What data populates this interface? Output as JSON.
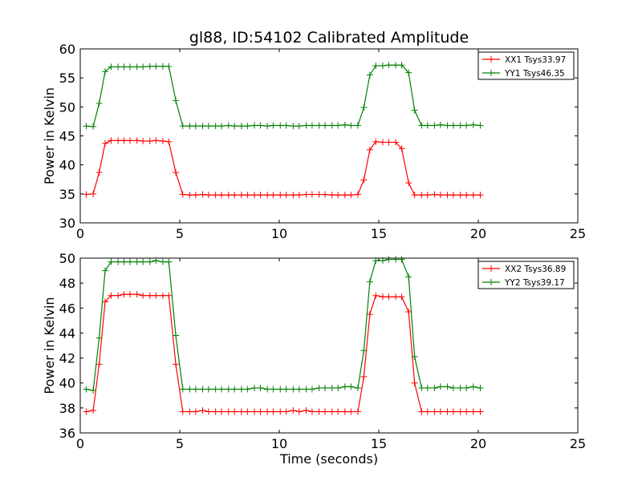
{
  "chart_data": [
    {
      "type": "line",
      "title": "gl88, ID:54102 Calibrated Amplitude",
      "xlabel": "",
      "ylabel": "Power in Kelvin",
      "xlim": [
        0,
        25
      ],
      "ylim": [
        30,
        60
      ],
      "xticks": [
        0,
        5,
        10,
        15,
        20,
        25
      ],
      "yticks": [
        30,
        35,
        40,
        45,
        50,
        55,
        60
      ],
      "grid": false,
      "legend_position": "top-right",
      "series": [
        {
          "name": "XX1 Tsys33.97",
          "color": "#ff0000",
          "x": [
            0.3,
            0.65,
            0.95,
            1.25,
            1.55,
            1.9,
            2.2,
            2.5,
            2.85,
            3.15,
            3.5,
            3.8,
            4.15,
            4.45,
            4.8,
            5.15,
            5.5,
            5.8,
            6.15,
            6.45,
            6.8,
            7.1,
            7.45,
            7.75,
            8.1,
            8.4,
            8.75,
            9.05,
            9.4,
            9.7,
            10.05,
            10.35,
            10.7,
            11.0,
            11.35,
            11.65,
            12.0,
            12.3,
            12.65,
            12.95,
            13.3,
            13.6,
            13.95,
            14.25,
            14.55,
            14.85,
            15.2,
            15.5,
            15.85,
            16.15,
            16.5,
            16.8,
            17.15,
            17.45,
            17.8,
            18.1,
            18.45,
            18.75,
            19.1,
            19.4,
            19.75,
            20.1
          ],
          "y": [
            34.9,
            35.0,
            38.7,
            43.7,
            44.2,
            44.2,
            44.2,
            44.2,
            44.2,
            44.1,
            44.1,
            44.2,
            44.1,
            44.0,
            38.7,
            34.9,
            34.8,
            34.8,
            34.9,
            34.8,
            34.8,
            34.8,
            34.8,
            34.8,
            34.8,
            34.8,
            34.8,
            34.8,
            34.8,
            34.8,
            34.8,
            34.8,
            34.8,
            34.8,
            34.9,
            34.9,
            34.9,
            34.9,
            34.8,
            34.8,
            34.8,
            34.8,
            34.9,
            37.4,
            42.6,
            44.0,
            43.9,
            43.9,
            43.9,
            42.8,
            36.9,
            34.8,
            34.8,
            34.8,
            34.9,
            34.8,
            34.8,
            34.8,
            34.8,
            34.8,
            34.8,
            34.8
          ]
        },
        {
          "name": "YY1 Tsys46.35",
          "color": "#008000",
          "x": [
            0.3,
            0.65,
            0.95,
            1.25,
            1.55,
            1.9,
            2.2,
            2.5,
            2.85,
            3.15,
            3.5,
            3.8,
            4.15,
            4.45,
            4.8,
            5.15,
            5.5,
            5.8,
            6.15,
            6.45,
            6.8,
            7.1,
            7.45,
            7.75,
            8.1,
            8.4,
            8.75,
            9.05,
            9.4,
            9.7,
            10.05,
            10.35,
            10.7,
            11.0,
            11.35,
            11.65,
            12.0,
            12.3,
            12.65,
            12.95,
            13.3,
            13.6,
            13.95,
            14.25,
            14.55,
            14.85,
            15.2,
            15.5,
            15.85,
            16.15,
            16.5,
            16.8,
            17.15,
            17.45,
            17.8,
            18.1,
            18.45,
            18.75,
            19.1,
            19.4,
            19.75,
            20.1
          ],
          "y": [
            46.7,
            46.6,
            50.6,
            56.1,
            56.9,
            56.9,
            56.9,
            56.9,
            56.9,
            56.9,
            57.0,
            57.0,
            57.0,
            57.0,
            51.1,
            46.7,
            46.7,
            46.7,
            46.7,
            46.7,
            46.7,
            46.7,
            46.8,
            46.7,
            46.7,
            46.7,
            46.8,
            46.8,
            46.7,
            46.8,
            46.8,
            46.8,
            46.7,
            46.7,
            46.8,
            46.8,
            46.8,
            46.8,
            46.8,
            46.8,
            46.9,
            46.8,
            46.8,
            49.9,
            55.5,
            57.1,
            57.1,
            57.2,
            57.2,
            57.2,
            55.9,
            49.4,
            46.8,
            46.8,
            46.8,
            46.9,
            46.8,
            46.8,
            46.8,
            46.8,
            46.9,
            46.8
          ]
        }
      ]
    },
    {
      "type": "line",
      "title": "",
      "xlabel": "Time (seconds)",
      "ylabel": "Power in Kelvin",
      "xlim": [
        0,
        25
      ],
      "ylim": [
        36,
        50
      ],
      "xticks": [
        0,
        5,
        10,
        15,
        20,
        25
      ],
      "yticks": [
        36,
        38,
        40,
        42,
        44,
        46,
        48,
        50
      ],
      "grid": false,
      "legend_position": "top-right",
      "series": [
        {
          "name": "XX2 Tsys36.89",
          "color": "#ff0000",
          "x": [
            0.3,
            0.65,
            0.95,
            1.25,
            1.55,
            1.9,
            2.2,
            2.5,
            2.85,
            3.15,
            3.5,
            3.8,
            4.15,
            4.45,
            4.8,
            5.15,
            5.5,
            5.8,
            6.15,
            6.45,
            6.8,
            7.1,
            7.45,
            7.75,
            8.1,
            8.4,
            8.75,
            9.05,
            9.4,
            9.7,
            10.05,
            10.35,
            10.7,
            11.0,
            11.35,
            11.65,
            12.0,
            12.3,
            12.65,
            12.95,
            13.3,
            13.6,
            13.95,
            14.25,
            14.55,
            14.85,
            15.2,
            15.5,
            15.85,
            16.15,
            16.5,
            16.8,
            17.15,
            17.45,
            17.8,
            18.1,
            18.45,
            18.75,
            19.1,
            19.4,
            19.75,
            20.1
          ],
          "y": [
            37.7,
            37.8,
            41.5,
            46.5,
            47.0,
            47.0,
            47.1,
            47.1,
            47.1,
            47.0,
            47.0,
            47.0,
            47.0,
            47.0,
            41.5,
            37.7,
            37.7,
            37.7,
            37.8,
            37.7,
            37.7,
            37.7,
            37.7,
            37.7,
            37.7,
            37.7,
            37.7,
            37.7,
            37.7,
            37.7,
            37.7,
            37.7,
            37.8,
            37.7,
            37.8,
            37.7,
            37.7,
            37.7,
            37.7,
            37.7,
            37.7,
            37.7,
            37.7,
            40.5,
            45.5,
            47.0,
            46.9,
            46.9,
            46.9,
            46.9,
            45.7,
            40.0,
            37.7,
            37.7,
            37.7,
            37.7,
            37.7,
            37.7,
            37.7,
            37.7,
            37.7,
            37.7
          ]
        },
        {
          "name": "YY2 Tsys39.17",
          "color": "#008000",
          "x": [
            0.3,
            0.65,
            0.95,
            1.25,
            1.55,
            1.9,
            2.2,
            2.5,
            2.85,
            3.15,
            3.5,
            3.8,
            4.15,
            4.45,
            4.8,
            5.15,
            5.5,
            5.8,
            6.15,
            6.45,
            6.8,
            7.1,
            7.45,
            7.75,
            8.1,
            8.4,
            8.75,
            9.05,
            9.4,
            9.7,
            10.05,
            10.35,
            10.7,
            11.0,
            11.35,
            11.65,
            12.0,
            12.3,
            12.65,
            12.95,
            13.3,
            13.6,
            13.95,
            14.25,
            14.55,
            14.85,
            15.2,
            15.5,
            15.85,
            16.15,
            16.5,
            16.8,
            17.15,
            17.45,
            17.8,
            18.1,
            18.45,
            18.75,
            19.1,
            19.4,
            19.75,
            20.1
          ],
          "y": [
            39.5,
            39.4,
            43.6,
            49.0,
            49.7,
            49.7,
            49.7,
            49.7,
            49.7,
            49.7,
            49.7,
            49.8,
            49.7,
            49.7,
            43.8,
            39.5,
            39.5,
            39.5,
            39.5,
            39.5,
            39.5,
            39.5,
            39.5,
            39.5,
            39.5,
            39.5,
            39.6,
            39.6,
            39.5,
            39.5,
            39.5,
            39.5,
            39.5,
            39.5,
            39.5,
            39.5,
            39.6,
            39.6,
            39.6,
            39.6,
            39.7,
            39.7,
            39.6,
            42.6,
            48.1,
            49.8,
            49.8,
            49.9,
            49.9,
            49.9,
            48.5,
            42.1,
            39.6,
            39.6,
            39.6,
            39.7,
            39.7,
            39.6,
            39.6,
            39.6,
            39.7,
            39.6
          ]
        }
      ]
    }
  ]
}
